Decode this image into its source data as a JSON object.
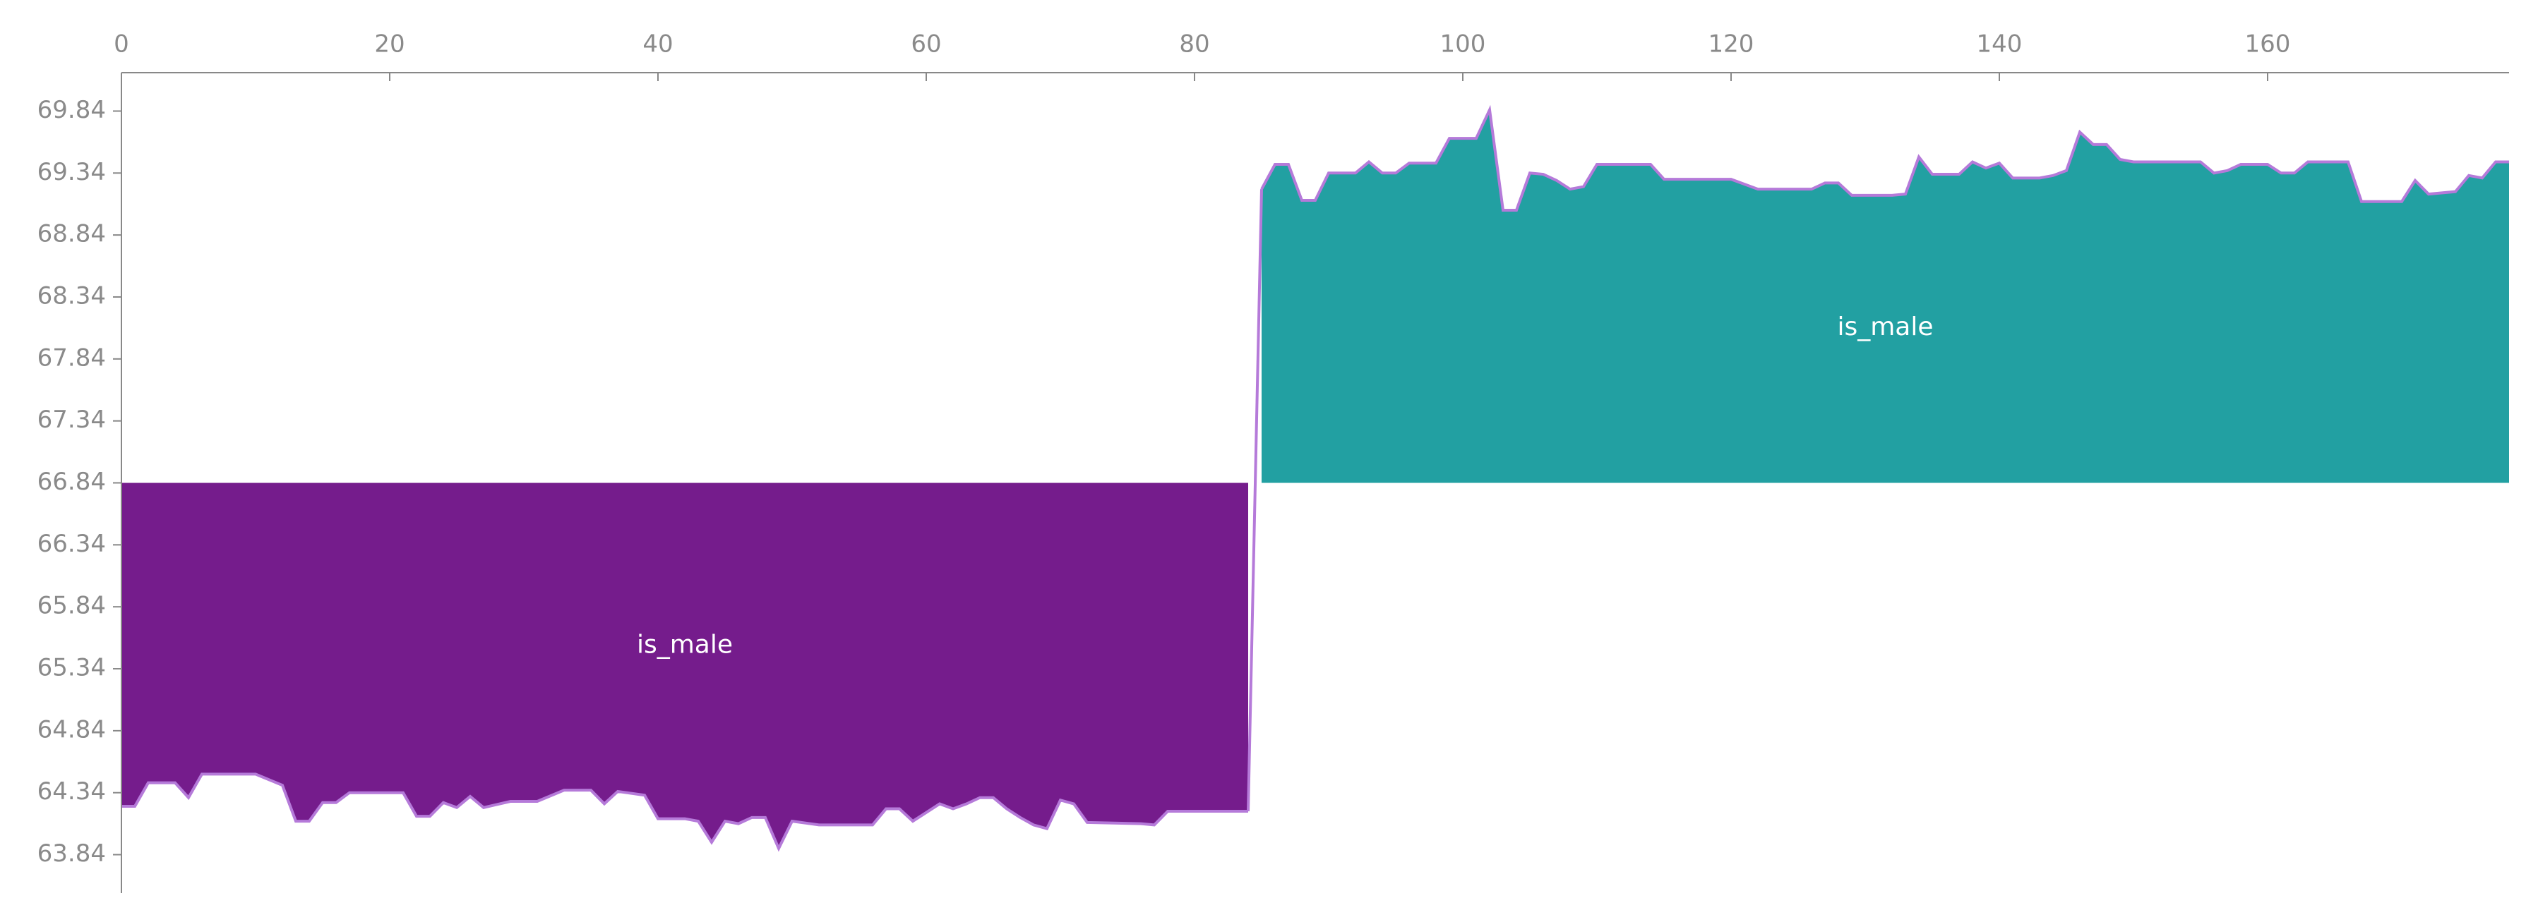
{
  "chart_data": {
    "type": "area",
    "baseline": 66.84,
    "xlim": [
      0,
      178
    ],
    "xticks": [
      0,
      20,
      40,
      60,
      80,
      100,
      120,
      140,
      160
    ],
    "ylim": [
      63.53,
      70.15
    ],
    "yticks": [
      63.84,
      64.34,
      64.84,
      65.34,
      65.84,
      66.34,
      66.84,
      67.34,
      67.84,
      68.34,
      68.84,
      69.34,
      69.84
    ],
    "line_color": "#b57ad9",
    "series": [
      {
        "name": "is_male",
        "color": "#751c8c",
        "x": [
          0,
          1,
          2,
          4,
          5,
          6,
          10,
          12,
          13,
          14,
          15,
          16,
          17,
          21,
          22,
          23,
          24,
          25,
          26,
          27,
          29,
          31,
          33,
          35,
          36,
          37,
          39,
          40,
          42,
          43,
          44,
          45,
          46,
          47,
          48,
          49,
          50,
          52,
          56,
          57,
          58,
          59,
          60,
          61,
          62,
          63,
          64,
          65,
          66,
          67,
          68,
          69,
          70,
          71,
          72,
          76,
          77,
          78,
          84
        ],
        "values": [
          64.23,
          64.23,
          64.42,
          64.42,
          64.3,
          64.49,
          64.49,
          64.4,
          64.11,
          64.11,
          64.26,
          64.26,
          64.34,
          64.34,
          64.15,
          64.15,
          64.26,
          64.22,
          64.31,
          64.22,
          64.27,
          64.27,
          64.36,
          64.36,
          64.25,
          64.35,
          64.32,
          64.13,
          64.13,
          64.11,
          63.94,
          64.11,
          64.09,
          64.14,
          64.14,
          63.89,
          64.11,
          64.08,
          64.08,
          64.21,
          64.21,
          64.11,
          64.18,
          64.25,
          64.21,
          64.25,
          64.3,
          64.3,
          64.21,
          64.14,
          64.08,
          64.05,
          64.28,
          64.25,
          64.1,
          64.09,
          64.08,
          64.19,
          64.19
        ]
      },
      {
        "name": "is_male",
        "color": "#22a0a2",
        "x": [
          85,
          86,
          87,
          88,
          89,
          90,
          92,
          93,
          94,
          95,
          96,
          98,
          99,
          101,
          102,
          103,
          104,
          105,
          106,
          107,
          108,
          109,
          110,
          114,
          115,
          120,
          121,
          122,
          126,
          127,
          128,
          129,
          132,
          133,
          134,
          135,
          137,
          138,
          139,
          140,
          141,
          143,
          144,
          145,
          146,
          147,
          148,
          149,
          150,
          155,
          156,
          157,
          158,
          160,
          161,
          162,
          163,
          166,
          167,
          170,
          171,
          172,
          174,
          175,
          176,
          177,
          178
        ],
        "values": [
          69.21,
          69.41,
          69.41,
          69.12,
          69.12,
          69.34,
          69.34,
          69.43,
          69.34,
          69.34,
          69.42,
          69.42,
          69.62,
          69.62,
          69.85,
          69.04,
          69.04,
          69.34,
          69.33,
          69.28,
          69.21,
          69.23,
          69.41,
          69.41,
          69.29,
          69.29,
          69.25,
          69.21,
          69.21,
          69.26,
          69.26,
          69.16,
          69.16,
          69.17,
          69.47,
          69.33,
          69.33,
          69.43,
          69.38,
          69.42,
          69.3,
          69.3,
          69.32,
          69.36,
          69.67,
          69.57,
          69.57,
          69.45,
          69.43,
          69.43,
          69.34,
          69.36,
          69.41,
          69.41,
          69.34,
          69.34,
          69.43,
          69.43,
          69.11,
          69.11,
          69.28,
          69.17,
          69.19,
          69.32,
          69.3,
          69.43,
          69.43
        ]
      }
    ]
  }
}
